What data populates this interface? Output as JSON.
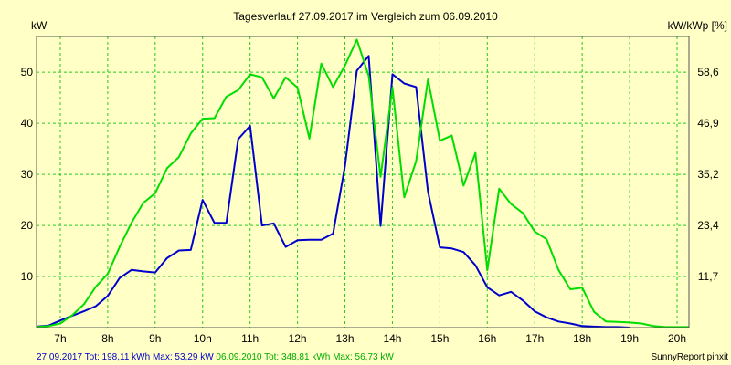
{
  "chart_data": {
    "type": "line",
    "title": "Tagesverlauf 27.09.2017 im Vergleich zum 06.09.2010",
    "ylabel_left": "kW",
    "ylabel_right": "kW/kWp [%]",
    "xlim": [
      6.5,
      20.25
    ],
    "ylim": [
      0,
      57
    ],
    "x_ticks": [
      7,
      8,
      9,
      10,
      11,
      12,
      13,
      14,
      15,
      16,
      17,
      18,
      19,
      20
    ],
    "x_tick_labels": [
      "7h",
      "8h",
      "9h",
      "10h",
      "11h",
      "12h",
      "13h",
      "14h",
      "15h",
      "16h",
      "17h",
      "18h",
      "19h",
      "20h"
    ],
    "y_ticks": [
      10,
      20,
      30,
      40,
      50
    ],
    "y_tick_labels": [
      "10",
      "20",
      "30",
      "40",
      "50"
    ],
    "y_right_ticks": [
      10,
      20,
      30,
      40,
      50
    ],
    "y_right_tick_labels": [
      "11,7",
      "23,4",
      "35,2",
      "46,9",
      "58,6"
    ],
    "grid": true,
    "background_color": "#FFFFC6",
    "grid_color": "#22CC22",
    "series": [
      {
        "color": "#0000CC",
        "x": [
          6.5,
          6.75,
          7.0,
          7.25,
          7.5,
          7.75,
          8.0,
          8.25,
          8.5,
          8.75,
          9.0,
          9.25,
          9.5,
          9.75,
          10.0,
          10.25,
          10.5,
          10.75,
          11.0,
          11.25,
          11.5,
          11.75,
          12.0,
          12.25,
          12.5,
          12.75,
          13.0,
          13.25,
          13.5,
          13.75,
          14.0,
          14.25,
          14.5,
          14.75,
          15.0,
          15.25,
          15.5,
          15.75,
          16.0,
          16.25,
          16.5,
          16.75,
          17.0,
          17.25,
          17.5,
          17.75,
          18.0,
          18.25,
          18.5,
          18.75,
          19.0
        ],
        "y": [
          0.2,
          0.4,
          1.4,
          2.3,
          3.2,
          4.2,
          6.2,
          9.7,
          11.3,
          11.0,
          10.8,
          13.6,
          15.1,
          15.2,
          25.0,
          20.5,
          20.5,
          36.9,
          39.5,
          20.0,
          20.4,
          15.8,
          17.1,
          17.2,
          17.2,
          18.4,
          31.6,
          50.3,
          53.2,
          19.9,
          49.6,
          47.8,
          47.1,
          26.6,
          15.7,
          15.5,
          14.8,
          12.2,
          7.9,
          6.3,
          7.0,
          5.3,
          3.2,
          2.0,
          1.2,
          0.8,
          0.3,
          0.2,
          0.1,
          0.1,
          0.0
        ]
      },
      {
        "color": "#00DD00",
        "x": [
          6.5,
          6.75,
          7.0,
          7.25,
          7.5,
          7.75,
          8.0,
          8.25,
          8.5,
          8.75,
          9.0,
          9.25,
          9.5,
          9.75,
          10.0,
          10.25,
          10.5,
          10.75,
          11.0,
          11.25,
          11.5,
          11.75,
          12.0,
          12.25,
          12.5,
          12.75,
          13.0,
          13.25,
          13.5,
          13.75,
          14.0,
          14.25,
          14.5,
          14.75,
          15.0,
          15.25,
          15.5,
          15.75,
          16.0,
          16.25,
          16.5,
          16.75,
          17.0,
          17.25,
          17.5,
          17.75,
          18.0,
          18.25,
          18.5,
          18.75,
          19.0,
          19.25,
          19.5,
          19.75,
          20.0,
          20.25
        ],
        "y": [
          0.1,
          0.3,
          0.8,
          2.4,
          4.6,
          8.0,
          10.5,
          15.8,
          20.5,
          24.4,
          26.3,
          31.2,
          33.4,
          38.0,
          40.9,
          41.0,
          45.2,
          46.5,
          49.6,
          49.0,
          44.9,
          49.0,
          47.0,
          37.0,
          51.7,
          47.1,
          51.3,
          56.4,
          49.3,
          29.5,
          47.0,
          25.5,
          32.6,
          48.6,
          36.6,
          37.6,
          27.8,
          34.2,
          11.2,
          27.2,
          24.2,
          22.4,
          18.8,
          17.3,
          11.3,
          7.5,
          7.8,
          3.1,
          1.2,
          1.1,
          1.0,
          0.8,
          0.3,
          0.1,
          0.1,
          0.1
        ]
      }
    ]
  },
  "footer": {
    "legend_blue": "27.09.2017 Tot: 198,11 kWh Max: 53,29 kW",
    "legend_green": " 06.09.2010 Tot: 348,81 kWh Max: 56,73 kW",
    "credit": "SunnyReport pinxit"
  }
}
